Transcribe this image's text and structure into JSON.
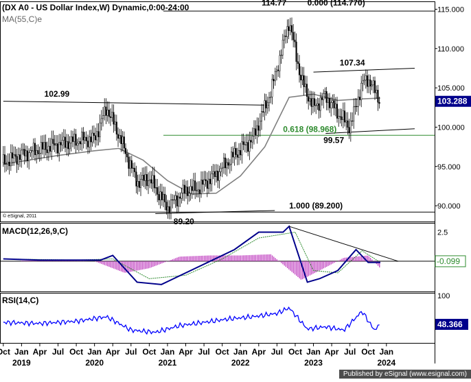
{
  "chart_data": [
    {
      "type": "line",
      "title": "(DX A0 - US Dollar Index,W) Dynamic,0:00-24:00",
      "subtitle": "MA(55,C)e",
      "watermark": "© eSignal, 2011",
      "y_ticks": [
        "115.000",
        "110.000",
        "105.000",
        "100.000",
        "95.000",
        "90.000"
      ],
      "ylim": [
        88,
        116
      ],
      "last_value": "103.288",
      "series": [
        {
          "name": "",
          "kind": "candles",
          "color": "#000000",
          "x": [
            "2018-10",
            "2019-01",
            "2019-04",
            "2019-07",
            "2019-10",
            "2020-01",
            "2020-03",
            "2020-05",
            "2020-08",
            "2020-10",
            "2021-01",
            "2021-04",
            "2021-06",
            "2021-09",
            "2021-12",
            "2022-03",
            "2022-06",
            "2022-09",
            "2022-11",
            "2023-01",
            "2023-03",
            "2023-05",
            "2023-07",
            "2023-09",
            "2023-10",
            "2023-12"
          ],
          "y": [
            95.5,
            96.5,
            97.2,
            97.8,
            98.3,
            98.5,
            102.5,
            99.0,
            93.0,
            93.5,
            89.8,
            92.0,
            92.2,
            94.0,
            96.5,
            98.5,
            104.5,
            113.5,
            106.0,
            102.5,
            104.0,
            101.8,
            100.0,
            105.5,
            106.2,
            103.3
          ]
        },
        {
          "name": "",
          "kind": "ma",
          "color": "#7f7f7f",
          "x": [
            "2018-10",
            "2019-07",
            "2020-01",
            "2020-05",
            "2020-09",
            "2021-01",
            "2021-05",
            "2021-09",
            "2022-01",
            "2022-05",
            "2022-09",
            "2023-01",
            "2023-05",
            "2023-09",
            "2023-12"
          ],
          "y": [
            95.3,
            96.4,
            97.0,
            97.3,
            95.8,
            93.2,
            91.5,
            91.6,
            93.8,
            97.5,
            103.8,
            104.2,
            103.4,
            103.6,
            103.7
          ]
        }
      ],
      "annotations": [
        {
          "label": "114.77",
          "x": "2022-09",
          "y": 114.77
        },
        {
          "label": "0.000 (114.770)",
          "x": "2022-12",
          "y": 114.77
        },
        {
          "label": "102.99",
          "x": "2019-07",
          "y": 102.99
        },
        {
          "label": "107.34",
          "x": "2023-06",
          "y": 107.34
        },
        {
          "label": "0.618 (98.968)",
          "x": "2022-08",
          "y": 98.968
        },
        {
          "label": "99.57",
          "x": "2023-04",
          "y": 99.57
        },
        {
          "label": "1.000 (89.200)",
          "x": "2022-09",
          "y": 89.2
        },
        {
          "label": "89.20",
          "x": "2021-02",
          "y": 89.2
        }
      ],
      "levels": [
        {
          "name": "0.000",
          "value": 114.77,
          "color": "#000000"
        },
        {
          "name": "0.618",
          "value": 98.968,
          "color": "#2e8b2e"
        },
        {
          "name": "1.000",
          "value": 89.2,
          "color": "#000000"
        }
      ],
      "trendlines": [
        {
          "from": [
            "2018-10",
            103.3
          ],
          "to": [
            "2021-12",
            102.8
          ]
        },
        {
          "from": [
            "2023-01",
            107.0
          ],
          "to": [
            "2023-12",
            107.5
          ]
        },
        {
          "from": [
            "2023-03",
            99.2
          ],
          "to": [
            "2023-12",
            99.8
          ]
        },
        {
          "from": [
            "2020-11",
            89.0
          ],
          "to": [
            "2022-01",
            89.4
          ]
        }
      ]
    },
    {
      "type": "line",
      "title": "MACD(12,26,9,C)",
      "y_ticks": [
        "2.5"
      ],
      "zero_label": "-0.099",
      "series": [
        {
          "name": "",
          "kind": "macd",
          "color": "#00008b",
          "x": [
            "2018-10",
            "2019-04",
            "2019-10",
            "2020-02",
            "2020-04",
            "2020-08",
            "2020-12",
            "2021-04",
            "2021-08",
            "2021-12",
            "2022-04",
            "2022-08",
            "2022-09",
            "2022-12",
            "2023-02",
            "2023-05",
            "2023-08",
            "2023-10",
            "2023-12"
          ],
          "y": [
            0.2,
            0.1,
            0.1,
            0.1,
            0.5,
            -1.8,
            -2.0,
            -1.0,
            0.0,
            1.0,
            2.5,
            2.5,
            3.0,
            -1.8,
            -1.5,
            -0.8,
            1.0,
            -0.1,
            -0.1
          ]
        },
        {
          "name": "",
          "kind": "signal",
          "color": "#2e8b2e",
          "x": [
            "2018-10",
            "2019-10",
            "2020-04",
            "2020-10",
            "2021-04",
            "2021-10",
            "2022-04",
            "2022-10",
            "2023-01",
            "2023-05",
            "2023-09",
            "2023-12"
          ],
          "y": [
            0.2,
            0.1,
            0.2,
            -1.5,
            -1.2,
            0.2,
            2.0,
            2.5,
            -0.8,
            -1.0,
            0.9,
            -0.1
          ]
        },
        {
          "name": "",
          "kind": "histogram",
          "color": "#c040c0",
          "x": [
            "2019-01",
            "2019-06",
            "2020-01",
            "2020-06",
            "2020-10",
            "2021-03",
            "2021-08",
            "2022-01",
            "2022-06",
            "2022-11",
            "2023-02",
            "2023-06",
            "2023-10",
            "2023-12"
          ],
          "y": [
            0.05,
            0.1,
            0.0,
            -1.0,
            -0.6,
            0.4,
            0.5,
            0.5,
            0.6,
            -1.6,
            -0.8,
            0.3,
            0.5,
            -0.6
          ]
        }
      ]
    },
    {
      "type": "line",
      "title": "RSI(14,C)",
      "y_ticks": [
        "100"
      ],
      "last_value": "48.366",
      "series": [
        {
          "name": "",
          "kind": "rsi",
          "color": "#0000ff",
          "x": [
            "2018-10",
            "2019-04",
            "2019-10",
            "2020-03",
            "2020-07",
            "2020-11",
            "2021-03",
            "2021-07",
            "2021-11",
            "2022-03",
            "2022-07",
            "2022-09",
            "2022-12",
            "2023-03",
            "2023-06",
            "2023-09",
            "2023-11",
            "2023-12"
          ],
          "y": [
            52,
            50,
            54,
            62,
            38,
            34,
            46,
            52,
            58,
            62,
            68,
            78,
            40,
            44,
            38,
            72,
            38,
            48
          ]
        }
      ]
    }
  ],
  "x_axis": {
    "labels": [
      {
        "text": "Oct",
        "x": "2018-10"
      },
      {
        "text": "Jan",
        "x": "2019-01"
      },
      {
        "text": "Apr",
        "x": "2019-04"
      },
      {
        "text": "Jul",
        "x": "2019-07"
      },
      {
        "text": "Oct",
        "x": "2019-10"
      },
      {
        "text": "Jan",
        "x": "2020-01"
      },
      {
        "text": "Apr",
        "x": "2020-04"
      },
      {
        "text": "Jul",
        "x": "2020-07"
      },
      {
        "text": "Oct",
        "x": "2020-10"
      },
      {
        "text": "Jan",
        "x": "2021-01"
      },
      {
        "text": "Apr",
        "x": "2021-04"
      },
      {
        "text": "Jul",
        "x": "2021-07"
      },
      {
        "text": "Oct",
        "x": "2021-10"
      },
      {
        "text": "Jan",
        "x": "2022-01"
      },
      {
        "text": "Apr",
        "x": "2022-04"
      },
      {
        "text": "Jul",
        "x": "2022-07"
      },
      {
        "text": "Oct",
        "x": "2022-10"
      },
      {
        "text": "Jan",
        "x": "2023-01"
      },
      {
        "text": "Apr",
        "x": "2023-04"
      },
      {
        "text": "Jul",
        "x": "2023-07"
      },
      {
        "text": "Oct",
        "x": "2023-10"
      },
      {
        "text": "Jan",
        "x": "2024-01"
      }
    ],
    "years": [
      {
        "text": "2019",
        "x": "2019-01"
      },
      {
        "text": "2020",
        "x": "2020-01"
      },
      {
        "text": "2021",
        "x": "2021-01"
      },
      {
        "text": "2022",
        "x": "2022-01"
      },
      {
        "text": "2023",
        "x": "2023-01"
      },
      {
        "text": "2024",
        "x": "2024-01"
      }
    ]
  },
  "footer": "Published by eSignal (www.esignal.com)",
  "colors": {
    "background": "#ffffff",
    "badge": "#00008b",
    "ma": "#7f7f7f",
    "histogram": "#c040c0",
    "rsi": "#0000ff",
    "fib_green": "#2e8b2e"
  }
}
